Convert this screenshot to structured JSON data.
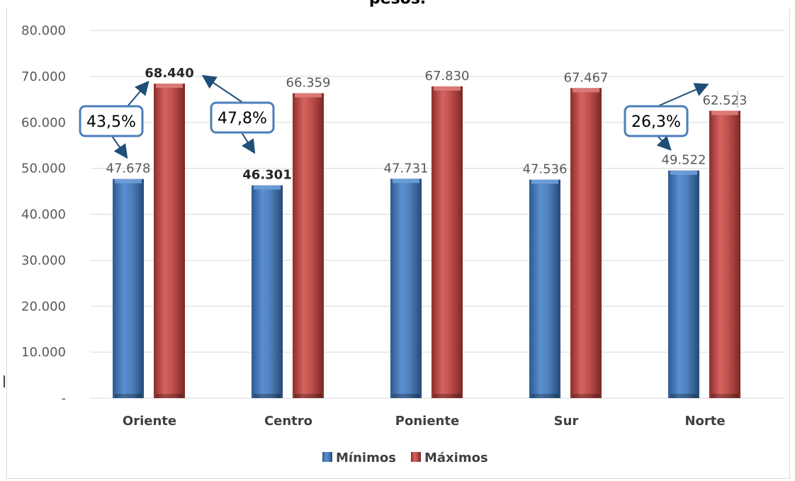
{
  "title": "pesos.",
  "colors": {
    "minimos": "#4f81bd",
    "maximos": "#c0504d",
    "grid": "#d9d9d9",
    "arrow": "#1f4e79",
    "callout_border": "#4a7ebb"
  },
  "chart_data": {
    "type": "bar",
    "categories": [
      "Oriente",
      "Centro",
      "Poniente",
      "Sur",
      "Norte"
    ],
    "series": [
      {
        "name": "Mínimos",
        "values": [
          47678,
          46301,
          47731,
          47536,
          49522
        ],
        "labels": [
          "47.678",
          "46.301",
          "47.731",
          "47.536",
          "49.522"
        ]
      },
      {
        "name": "Máximos",
        "values": [
          68440,
          66359,
          67830,
          67467,
          62523
        ],
        "labels": [
          "68.440",
          "66.359",
          "67.830",
          "67.467",
          "62.523"
        ]
      }
    ],
    "ylim": [
      0,
      80000
    ],
    "yticks": [
      "-",
      "10.000",
      "20.000",
      "30.000",
      "40.000",
      "50.000",
      "60.000",
      "70.000",
      "80.000"
    ],
    "grid": true,
    "legend": "bottom",
    "title": "pesos.",
    "xlabel": "",
    "ylabel": "",
    "annotations": [
      {
        "text": "43,5%",
        "category": "Oriente"
      },
      {
        "text": "47,8%",
        "category": "Oriente-Centro"
      },
      {
        "text": "26,3%",
        "category": "Norte"
      }
    ]
  }
}
